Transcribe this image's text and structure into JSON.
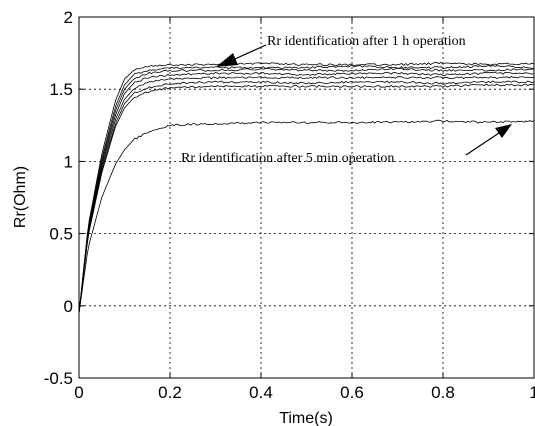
{
  "chart_data": {
    "type": "line",
    "title": "",
    "xlabel": "Time(s)",
    "ylabel": "Rr(Ohm)",
    "xlim": [
      0,
      1
    ],
    "ylim": [
      -0.5,
      2
    ],
    "xticks": [
      0,
      0.2,
      0.4,
      0.6,
      0.8,
      1
    ],
    "xtick_labels": [
      "0",
      "0.2",
      "0.4",
      "0.6",
      "0.8",
      "1"
    ],
    "yticks": [
      -0.5,
      0,
      0.5,
      1,
      1.5,
      2
    ],
    "ytick_labels": [
      "-0.5",
      "0",
      "0.5",
      "1",
      "1.5",
      "2"
    ],
    "grid": true,
    "grid_style": "dotted",
    "line_color": "#000000",
    "series": [
      {
        "x": [
          0,
          0.02,
          0.05,
          0.08,
          0.1,
          0.12,
          0.15,
          0.2,
          0.3,
          0.4,
          0.5,
          0.6,
          0.7,
          0.8,
          0.9,
          1.0
        ],
        "values": [
          -0.05,
          0.55,
          1.05,
          1.42,
          1.57,
          1.63,
          1.66,
          1.67,
          1.67,
          1.68,
          1.67,
          1.67,
          1.67,
          1.68,
          1.67,
          1.68
        ]
      },
      {
        "x": [
          0,
          0.02,
          0.05,
          0.08,
          0.1,
          0.12,
          0.15,
          0.2,
          0.3,
          0.4,
          0.5,
          0.6,
          0.7,
          0.8,
          0.9,
          1.0
        ],
        "values": [
          -0.05,
          0.53,
          1.02,
          1.38,
          1.53,
          1.6,
          1.63,
          1.65,
          1.65,
          1.65,
          1.65,
          1.66,
          1.65,
          1.65,
          1.66,
          1.65
        ]
      },
      {
        "x": [
          0,
          0.02,
          0.05,
          0.08,
          0.1,
          0.12,
          0.15,
          0.2,
          0.3,
          0.4,
          0.5,
          0.6,
          0.7,
          0.8,
          0.9,
          1.0
        ],
        "values": [
          -0.05,
          0.52,
          1.0,
          1.35,
          1.5,
          1.57,
          1.61,
          1.63,
          1.63,
          1.64,
          1.63,
          1.63,
          1.64,
          1.63,
          1.63,
          1.64
        ]
      },
      {
        "x": [
          0,
          0.02,
          0.05,
          0.08,
          0.1,
          0.12,
          0.15,
          0.2,
          0.3,
          0.4,
          0.5,
          0.6,
          0.7,
          0.8,
          0.9,
          1.0
        ],
        "values": [
          -0.05,
          0.51,
          0.98,
          1.32,
          1.47,
          1.54,
          1.58,
          1.6,
          1.61,
          1.61,
          1.6,
          1.61,
          1.61,
          1.6,
          1.61,
          1.61
        ]
      },
      {
        "x": [
          0,
          0.02,
          0.05,
          0.08,
          0.1,
          0.12,
          0.15,
          0.2,
          0.3,
          0.4,
          0.5,
          0.6,
          0.7,
          0.8,
          0.9,
          1.0
        ],
        "values": [
          -0.05,
          0.5,
          0.96,
          1.29,
          1.43,
          1.5,
          1.55,
          1.57,
          1.58,
          1.58,
          1.58,
          1.58,
          1.58,
          1.58,
          1.58,
          1.58
        ]
      },
      {
        "x": [
          0,
          0.02,
          0.05,
          0.08,
          0.1,
          0.12,
          0.15,
          0.2,
          0.3,
          0.4,
          0.5,
          0.6,
          0.7,
          0.8,
          0.9,
          1.0
        ],
        "values": [
          -0.05,
          0.49,
          0.94,
          1.26,
          1.4,
          1.47,
          1.51,
          1.54,
          1.55,
          1.55,
          1.54,
          1.55,
          1.55,
          1.54,
          1.55,
          1.55
        ]
      },
      {
        "x": [
          0,
          0.02,
          0.05,
          0.08,
          0.1,
          0.12,
          0.15,
          0.2,
          0.3,
          0.4,
          0.5,
          0.6,
          0.7,
          0.8,
          0.9,
          1.0
        ],
        "values": [
          -0.05,
          0.48,
          0.92,
          1.24,
          1.37,
          1.44,
          1.48,
          1.51,
          1.52,
          1.52,
          1.52,
          1.52,
          1.52,
          1.52,
          1.53,
          1.53
        ]
      },
      {
        "x": [
          0,
          0.02,
          0.05,
          0.08,
          0.1,
          0.12,
          0.15,
          0.2,
          0.3,
          0.4,
          0.5,
          0.6,
          0.7,
          0.8,
          0.9,
          1.0
        ],
        "values": [
          -0.05,
          0.4,
          0.75,
          0.98,
          1.08,
          1.15,
          1.2,
          1.25,
          1.26,
          1.27,
          1.27,
          1.27,
          1.27,
          1.28,
          1.27,
          1.28
        ]
      }
    ],
    "annotations": [
      {
        "text": "Rr identification after 1 h operation",
        "target_x": 0.26,
        "target_y": 1.66
      },
      {
        "text": "Rr identification after 5 min  operation",
        "target_x": 0.99,
        "target_y": 1.28
      }
    ]
  }
}
